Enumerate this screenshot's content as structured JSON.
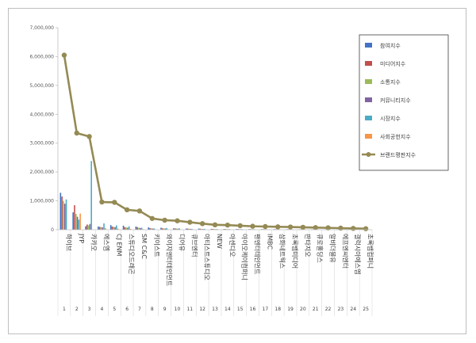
{
  "chart_data": {
    "type": "bar",
    "title": "",
    "xlabel": "",
    "ylabel": "",
    "ylim": [
      0,
      7000000
    ],
    "yticks": [
      "0",
      "1,000,000",
      "2,000,000",
      "3,000,000",
      "4,000,000",
      "5,000,000",
      "6,000,000",
      "7,000,000"
    ],
    "legend_position": "top-right",
    "grid": false,
    "categories": [
      "하이브",
      "JYP",
      "카카오",
      "에스엠",
      "CJ ENM",
      "스튜디오드래곤",
      "SM C&C",
      "키이스트",
      "와이지엔터테인먼트",
      "디어유",
      "큐브엔터",
      "아티스트스튜디오",
      "NEW",
      "아센디오",
      "아이오케이컴퍼니",
      "팬엔터테인먼트",
      "iMBC",
      "삼화네트웍스",
      "초록뱀미디어",
      "판타지오",
      "큐로홀딩스",
      "알비더블유",
      "에프엔씨엔터",
      "갤럭시아에스엠",
      "초록뱀컴퍼니"
    ],
    "index_labels": [
      "1",
      "2",
      "3",
      "4",
      "5",
      "6",
      "7",
      "8",
      "9",
      "10",
      "11",
      "12",
      "13",
      "14",
      "15",
      "16",
      "17",
      "18",
      "19",
      "20",
      "21",
      "22",
      "23",
      "24",
      "25"
    ],
    "series": [
      {
        "name": "참여지수",
        "color": "#4472c4",
        "kind": "bar",
        "values": [
          1280000,
          600000,
          120000,
          110000,
          160000,
          140000,
          110000,
          80000,
          70000,
          50000,
          40000,
          40000,
          30000,
          25000,
          25000,
          20000,
          20000,
          20000,
          18000,
          15000,
          15000,
          12000,
          12000,
          10000,
          8000
        ]
      },
      {
        "name": "미디어지수",
        "color": "#c0504d",
        "kind": "bar",
        "values": [
          1150000,
          850000,
          180000,
          100000,
          110000,
          90000,
          90000,
          60000,
          50000,
          45000,
          40000,
          35000,
          30000,
          25000,
          25000,
          20000,
          20000,
          18000,
          18000,
          15000,
          14000,
          12000,
          12000,
          10000,
          8000
        ]
      },
      {
        "name": "소통지수",
        "color": "#9bbb59",
        "kind": "bar",
        "values": [
          1000000,
          550000,
          150000,
          90000,
          100000,
          80000,
          70000,
          50000,
          45000,
          40000,
          35000,
          30000,
          25000,
          20000,
          20000,
          18000,
          18000,
          15000,
          15000,
          12000,
          12000,
          10000,
          10000,
          8000,
          6000
        ]
      },
      {
        "name": "커뮤니티지수",
        "color": "#8064a2",
        "kind": "bar",
        "values": [
          900000,
          450000,
          200000,
          80000,
          90000,
          70000,
          60000,
          40000,
          40000,
          35000,
          30000,
          25000,
          20000,
          18000,
          18000,
          15000,
          15000,
          12000,
          12000,
          10000,
          10000,
          8000,
          8000,
          6000,
          5000
        ]
      },
      {
        "name": "시장지수",
        "color": "#4bacc6",
        "kind": "bar",
        "values": [
          1050000,
          350000,
          2380000,
          220000,
          150000,
          120000,
          70000,
          45000,
          60000,
          50000,
          30000,
          30000,
          25000,
          20000,
          20000,
          15000,
          15000,
          12000,
          12000,
          10000,
          10000,
          8000,
          8000,
          6000,
          5000
        ]
      },
      {
        "name": "사회공헌지수",
        "color": "#f79646",
        "kind": "bar",
        "values": [
          0,
          560000,
          0,
          60000,
          40000,
          30000,
          20000,
          10000,
          10000,
          10000,
          10000,
          5000,
          5000,
          5000,
          5000,
          5000,
          5000,
          5000,
          5000,
          5000,
          5000,
          5000,
          5000,
          5000,
          5000
        ]
      },
      {
        "name": "브랜드평판지수",
        "color": "#948a54",
        "kind": "line",
        "values": [
          6050000,
          3350000,
          3230000,
          960000,
          950000,
          690000,
          650000,
          390000,
          330000,
          310000,
          260000,
          210000,
          170000,
          160000,
          140000,
          120000,
          110000,
          100000,
          95000,
          85000,
          75000,
          65000,
          55000,
          45000,
          35000
        ]
      }
    ]
  }
}
